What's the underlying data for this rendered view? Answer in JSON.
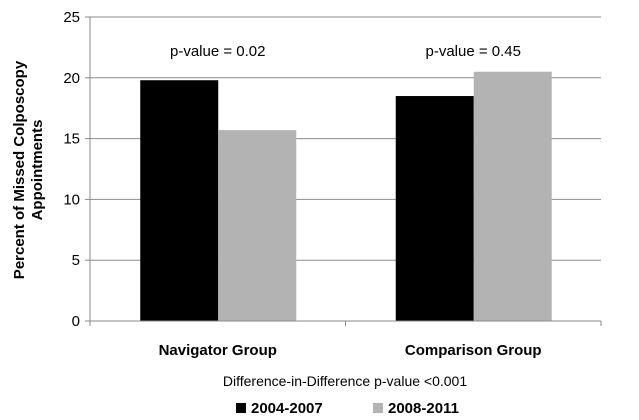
{
  "chart_data": {
    "type": "bar",
    "categories": [
      "Navigator Group",
      "Comparison Group"
    ],
    "series": [
      {
        "name": "2004-2007",
        "color": "#000000",
        "values": [
          19.8,
          18.5
        ]
      },
      {
        "name": "2008-2011",
        "color": "#b3b3b3",
        "values": [
          15.7,
          20.5
        ]
      }
    ],
    "ylabel_lines": [
      "Percent of Missed Colposcopy",
      "Appointments"
    ],
    "ylim": [
      0,
      25
    ],
    "yticks": [
      0,
      5,
      10,
      15,
      20,
      25
    ],
    "grid": true,
    "legend_position": "bottom",
    "annotations": [
      "p-value = 0.02",
      "p-value = 0.45"
    ],
    "note": "Difference-in-Difference p-value <0.001"
  }
}
